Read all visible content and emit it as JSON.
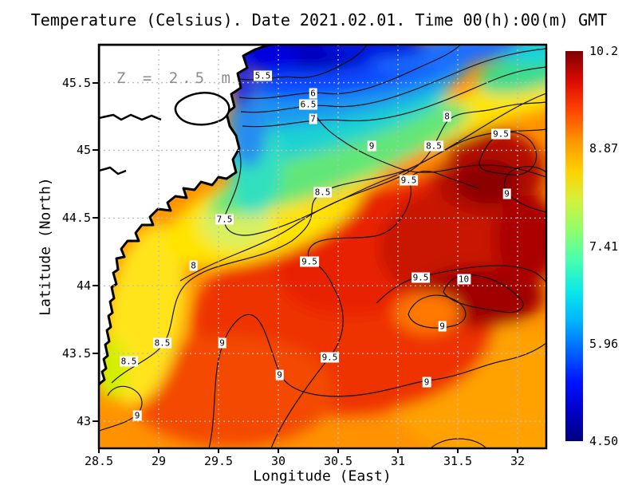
{
  "title": "Temperature (Celsius). Date 2021.02.01. Time 00(h):00(m) GMT",
  "annotation": {
    "text": "Z = 2.5 m"
  },
  "axes": {
    "x": {
      "label": "Longitude (East)",
      "range": [
        28.5,
        32.24
      ],
      "ticks": [
        {
          "value": 28.5,
          "label": "28.5"
        },
        {
          "value": 29,
          "label": "29"
        },
        {
          "value": 29.5,
          "label": "29.5"
        },
        {
          "value": 30,
          "label": "30"
        },
        {
          "value": 30.5,
          "label": "30.5"
        },
        {
          "value": 31,
          "label": "31"
        },
        {
          "value": 31.5,
          "label": "31.5"
        },
        {
          "value": 32,
          "label": "32"
        }
      ]
    },
    "y": {
      "label": "Latitude (North)",
      "range": [
        42.8,
        45.78
      ],
      "ticks": [
        {
          "value": 45.5,
          "label": "45.5"
        },
        {
          "value": 45,
          "label": "45"
        },
        {
          "value": 44.5,
          "label": "44.5"
        },
        {
          "value": 44,
          "label": "44"
        },
        {
          "value": 43.5,
          "label": "43.5"
        },
        {
          "value": 43,
          "label": "43"
        }
      ]
    }
  },
  "colorbar": {
    "min": 4.5,
    "max": 10.2,
    "tick_labels": [
      "10.2",
      "8.87",
      "7.41",
      "5.96",
      "4.50"
    ],
    "gradient_bottom_to_top": [
      "#00007f",
      "#0000c8",
      "#0014ff",
      "#0064ff",
      "#00b4ff",
      "#0ae8e8",
      "#46ffb0",
      "#8cff6e",
      "#d2f23c",
      "#ffd200",
      "#ff9600",
      "#ff4600",
      "#dc0a00",
      "#7f0000"
    ]
  },
  "chart_data": {
    "type": "heatmap",
    "title": "Temperature (Celsius). Date 2021.02.01. Time 00(h):00(m) GMT",
    "xlabel": "Longitude (East)",
    "ylabel": "Latitude (North)",
    "x_range": [
      28.5,
      32.24
    ],
    "y_range": [
      42.8,
      45.78
    ],
    "value_units": "Celsius",
    "value_range": [
      4.5,
      10.2
    ],
    "depth_annotation": "Z = 2.5 m",
    "colorbar_ticks": [
      10.2,
      8.87,
      7.41,
      5.96,
      4.5
    ],
    "contour_levels": [
      5,
      5.5,
      6,
      6.5,
      7,
      7.5,
      8,
      8.5,
      9,
      9.5,
      10
    ],
    "gradient_structure": "cold (4.5-6C) plume at northern coast, warming southeastward to 9.5-10C core offshore",
    "contour_labels": [
      {
        "value": "5.5",
        "lon": 29.87,
        "lat": 45.55
      },
      {
        "value": "6",
        "lon": 30.29,
        "lat": 45.42
      },
      {
        "value": "6.5",
        "lon": 30.25,
        "lat": 45.34
      },
      {
        "value": "7",
        "lon": 30.29,
        "lat": 45.23
      },
      {
        "value": "8",
        "lon": 31.41,
        "lat": 45.25
      },
      {
        "value": "9.5",
        "lon": 31.86,
        "lat": 45.12
      },
      {
        "value": "8.5",
        "lon": 31.3,
        "lat": 45.03
      },
      {
        "value": "9",
        "lon": 30.78,
        "lat": 45.03
      },
      {
        "value": "9.5",
        "lon": 31.09,
        "lat": 44.78
      },
      {
        "value": "9",
        "lon": 31.91,
        "lat": 44.68
      },
      {
        "value": "7.5",
        "lon": 29.55,
        "lat": 44.49
      },
      {
        "value": "8.5",
        "lon": 30.37,
        "lat": 44.69
      },
      {
        "value": "8",
        "lon": 29.29,
        "lat": 44.15
      },
      {
        "value": "9.5",
        "lon": 30.26,
        "lat": 44.18
      },
      {
        "value": "9.5",
        "lon": 31.19,
        "lat": 44.06
      },
      {
        "value": "10",
        "lon": 31.55,
        "lat": 44.05
      },
      {
        "value": "9",
        "lon": 31.37,
        "lat": 43.7
      },
      {
        "value": "8.5",
        "lon": 29.03,
        "lat": 43.58
      },
      {
        "value": "9",
        "lon": 29.53,
        "lat": 43.58
      },
      {
        "value": "8.5",
        "lon": 28.75,
        "lat": 43.44
      },
      {
        "value": "9.5",
        "lon": 30.43,
        "lat": 43.47
      },
      {
        "value": "9",
        "lon": 30.01,
        "lat": 43.34
      },
      {
        "value": "9",
        "lon": 31.24,
        "lat": 43.29
      },
      {
        "value": "9",
        "lon": 28.82,
        "lat": 43.04
      }
    ]
  }
}
